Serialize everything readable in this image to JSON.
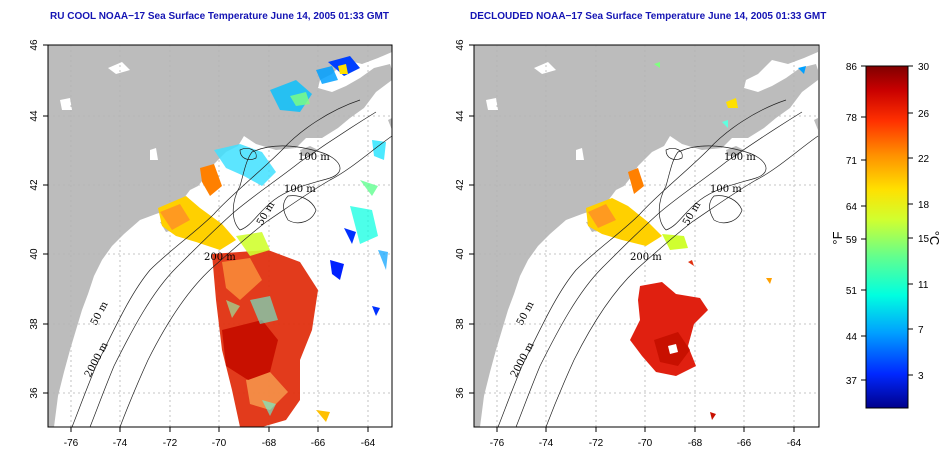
{
  "titles": {
    "left": "RU COOL NOAA−17 Sea Surface Temperature June 14, 2005 01:33 GMT",
    "right": "DECLOUDED NOAA−17 Sea Surface Temperature June 14, 2005 01:33 GMT"
  },
  "axes": {
    "lon_ticks": [
      "-76",
      "-74",
      "-72",
      "-70",
      "-68",
      "-66",
      "-64"
    ],
    "lat_ticks": [
      "46",
      "44",
      "42",
      "40",
      "38",
      "36"
    ]
  },
  "contour_labels": [
    "100 m",
    "100 m",
    "50 m",
    "200 m",
    "50 m",
    "2000 m"
  ],
  "colorbar": {
    "f_ticks": [
      "86",
      "78",
      "71",
      "64",
      "59",
      "51",
      "44",
      "37"
    ],
    "c_ticks": [
      "30",
      "26",
      "22",
      "18",
      "15",
      "11",
      "7",
      "3"
    ],
    "f_label": "°F",
    "c_label": "°C"
  },
  "colors": {
    "land": "#bcbcbc",
    "water": "#ffffff",
    "grid": "#b4b4b4",
    "title": "#1414b4",
    "colormap": [
      "#00008c",
      "#0028ff",
      "#00a0ff",
      "#00ffe0",
      "#60ff90",
      "#d0ff30",
      "#ffe000",
      "#ff9000",
      "#ff3000",
      "#c80000",
      "#800000"
    ]
  }
}
